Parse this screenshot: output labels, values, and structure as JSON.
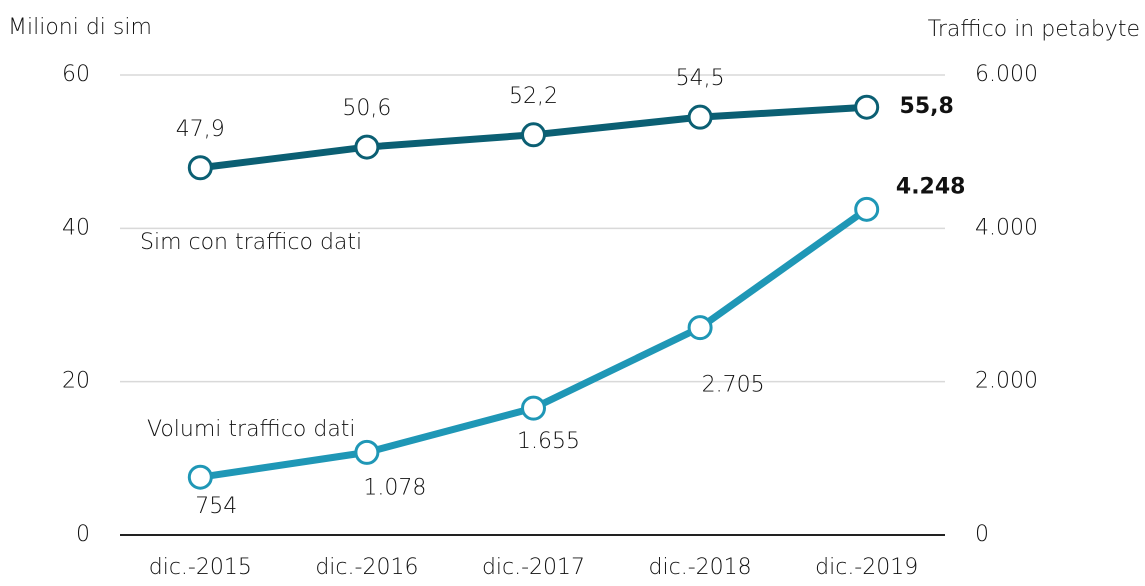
{
  "chart_data": {
    "type": "line",
    "ylabel": "Milioni di sim",
    "y2label": "Traffico in petabyte",
    "categories": [
      "dic.-2015",
      "dic.-2016",
      "dic.-2017",
      "dic.-2018",
      "dic.-2019"
    ],
    "series": [
      {
        "name": "Sim con traffico dati",
        "color": "#0b5f73",
        "values": [
          47.9,
          50.6,
          52.2,
          54.5,
          55.8
        ],
        "value_labels": [
          "47,9",
          "50,6",
          "52,2",
          "54,5",
          "55,8"
        ]
      },
      {
        "name": "Volumi traffico dati",
        "color": "#1f97b6",
        "axis": "y2",
        "values": [
          754,
          1078,
          1655,
          2705,
          4248
        ],
        "value_labels": [
          "754",
          "1.078",
          "1.655",
          "2.705",
          "4.248"
        ]
      }
    ],
    "ylim": [
      0,
      60
    ],
    "yticks": [
      0,
      20,
      40,
      60
    ],
    "y2lim": [
      0,
      6000
    ],
    "y2ticks": [
      0,
      {
        "value": 2000,
        "label": "2.000"
      },
      {
        "value": 4000,
        "label": "4.000"
      },
      {
        "value": 6000,
        "label": "6.000"
      }
    ],
    "grid": true
  }
}
